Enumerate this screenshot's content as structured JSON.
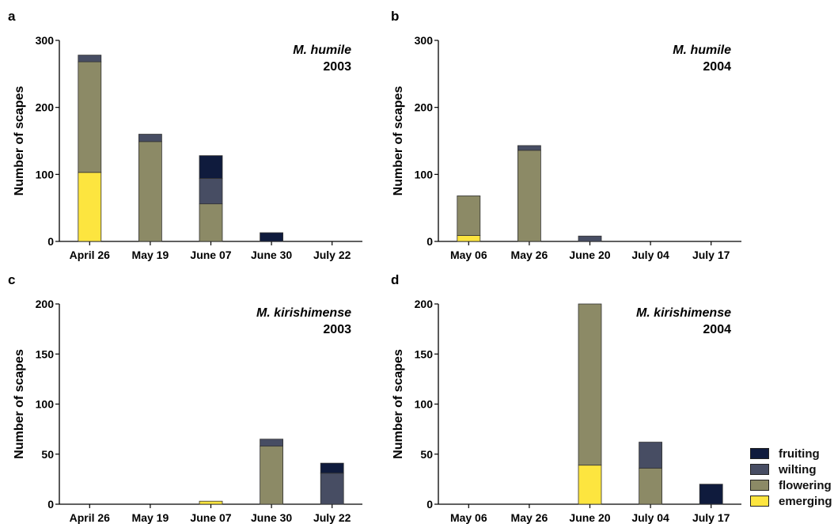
{
  "colors": {
    "fruiting": "#0f1b3d",
    "wilting": "#474d63",
    "flowering": "#8c8a66",
    "emerging": "#fde53f"
  },
  "legend": [
    {
      "key": "fruiting",
      "label": "fruiting"
    },
    {
      "key": "wilting",
      "label": "wilting"
    },
    {
      "key": "flowering",
      "label": "flowering"
    },
    {
      "key": "emerging",
      "label": "emerging"
    }
  ],
  "chart_data": [
    {
      "type": "bar",
      "stacked": true,
      "panel": "a",
      "species": "M. humile",
      "year": "2003",
      "ylabel": "Number of scapes",
      "ylim": [
        0,
        300
      ],
      "yticks": [
        0,
        100,
        200,
        300
      ],
      "categories": [
        "April 26",
        "May 19",
        "June 07",
        "June 30",
        "July 22"
      ],
      "series": [
        {
          "name": "emerging",
          "values": [
            103,
            0,
            0,
            0,
            0
          ]
        },
        {
          "name": "flowering",
          "values": [
            165,
            149,
            56,
            0,
            0
          ]
        },
        {
          "name": "wilting",
          "values": [
            10,
            11,
            38,
            0,
            0
          ]
        },
        {
          "name": "fruiting",
          "values": [
            0,
            0,
            34,
            13,
            0
          ]
        }
      ]
    },
    {
      "type": "bar",
      "stacked": true,
      "panel": "b",
      "species": "M. humile",
      "year": "2004",
      "ylabel": "Number of scapes",
      "ylim": [
        0,
        300
      ],
      "yticks": [
        0,
        100,
        200,
        300
      ],
      "categories": [
        "May 06",
        "May 26",
        "June 20",
        "July 04",
        "July 17"
      ],
      "series": [
        {
          "name": "emerging",
          "values": [
            9,
            0,
            0,
            0,
            0
          ]
        },
        {
          "name": "flowering",
          "values": [
            59,
            136,
            0,
            0,
            0
          ]
        },
        {
          "name": "wilting",
          "values": [
            0,
            7,
            8,
            0,
            0
          ]
        },
        {
          "name": "fruiting",
          "values": [
            0,
            0,
            0,
            0,
            0
          ]
        }
      ]
    },
    {
      "type": "bar",
      "stacked": true,
      "panel": "c",
      "species": "M. kirishimense",
      "year": "2003",
      "ylabel": "Number of scapes",
      "ylim": [
        0,
        200
      ],
      "yticks": [
        0,
        50,
        100,
        150,
        200
      ],
      "categories": [
        "April 26",
        "May 19",
        "June 07",
        "June 30",
        "July 22"
      ],
      "series": [
        {
          "name": "emerging",
          "values": [
            0,
            0,
            3,
            0,
            0
          ]
        },
        {
          "name": "flowering",
          "values": [
            0,
            0,
            0,
            58,
            0
          ]
        },
        {
          "name": "wilting",
          "values": [
            0,
            0,
            0,
            7,
            31
          ]
        },
        {
          "name": "fruiting",
          "values": [
            0,
            0,
            0,
            0,
            10
          ]
        }
      ]
    },
    {
      "type": "bar",
      "stacked": true,
      "panel": "d",
      "species": "M. kirishimense",
      "year": "2004",
      "ylabel": "Number of scapes",
      "ylim": [
        0,
        200
      ],
      "yticks": [
        0,
        50,
        100,
        150,
        200
      ],
      "categories": [
        "May 06",
        "May 26",
        "June 20",
        "July 04",
        "July 17"
      ],
      "series": [
        {
          "name": "emerging",
          "values": [
            0,
            0,
            39,
            0,
            0
          ]
        },
        {
          "name": "flowering",
          "values": [
            0,
            0,
            161,
            36,
            0
          ]
        },
        {
          "name": "wilting",
          "values": [
            0,
            0,
            0,
            26,
            0
          ]
        },
        {
          "name": "fruiting",
          "values": [
            0,
            0,
            0,
            0,
            20
          ]
        }
      ]
    }
  ]
}
